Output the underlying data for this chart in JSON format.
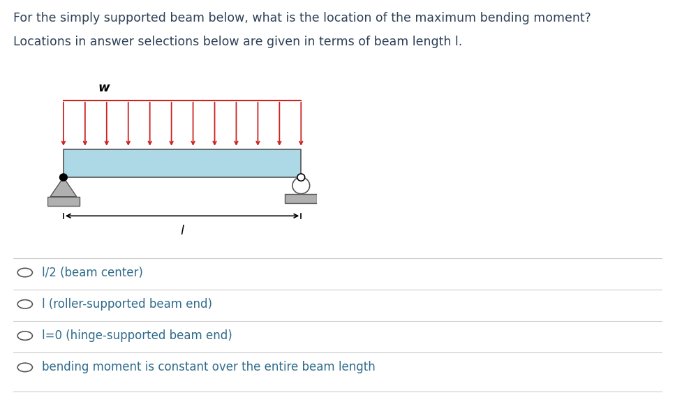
{
  "title_line1": "For the simply supported beam below, what is the location of the maximum bending moment?",
  "title_line2": "Locations in answer selections below are given in terms of beam length l.",
  "title_color": "#2e4057",
  "title_fontsize": 12.5,
  "options": [
    "l/2 (beam center)",
    "l (roller-supported beam end)",
    "l=0 (hinge-supported beam end)",
    "bending moment is constant over the entire beam length"
  ],
  "option_color": "#2e6b8a",
  "option_fontsize": 12,
  "beam_color": "#add8e6",
  "beam_edge_color": "#555555",
  "load_color": "#cc2222",
  "support_color": "#b0b0b0",
  "background_color": "#ffffff",
  "num_arrows": 12,
  "w_label": "w",
  "l_label": "l"
}
